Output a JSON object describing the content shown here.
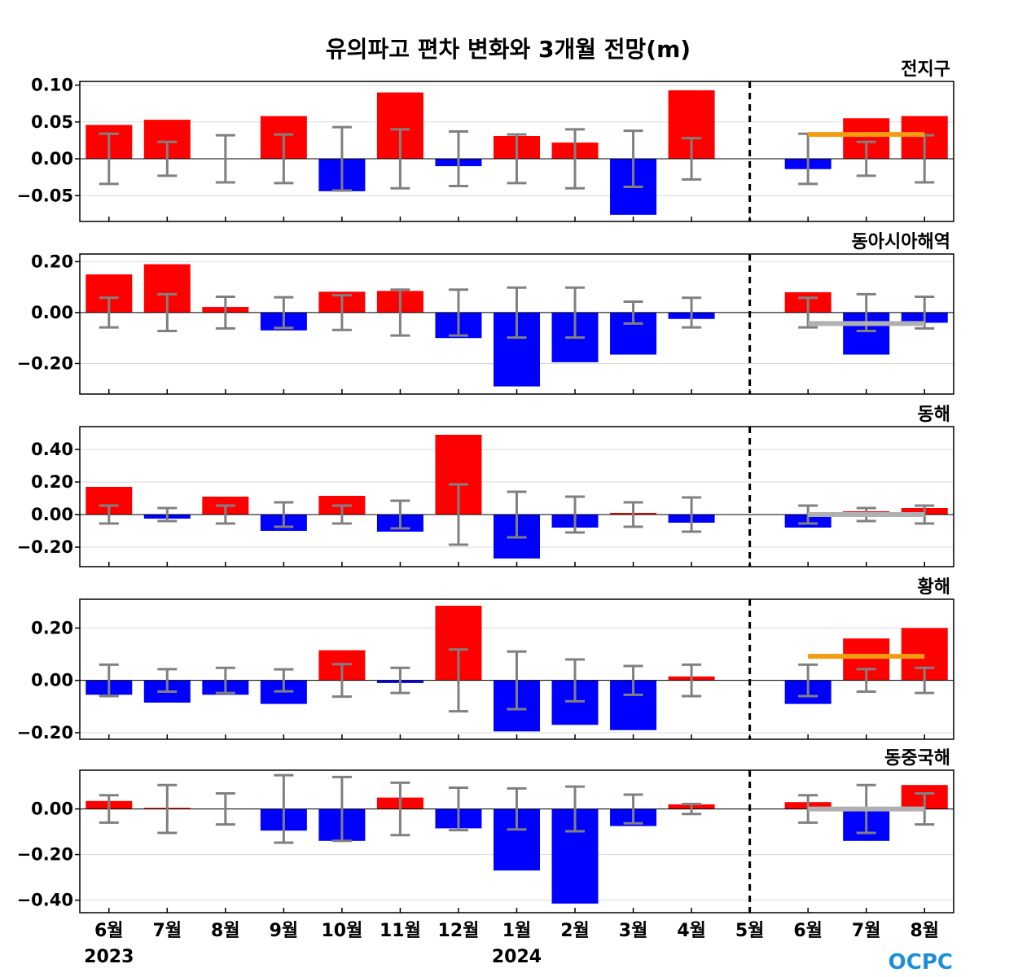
{
  "title": "유의파고 편차 변화와 3개월 전망(m)",
  "logo": "OCPC",
  "colors": {
    "positive": "#ff0000",
    "negative": "#0000ff",
    "errorbar": "#808080",
    "outlook_up": "#f39c12",
    "outlook_flat": "#b0b0b0",
    "divider": "#000000",
    "grid": "#d9d9d9"
  },
  "chart_data": {
    "type": "bar",
    "categories": [
      "6월",
      "7월",
      "8월",
      "9월",
      "10월",
      "11월",
      "12월",
      "1월",
      "2월",
      "3월",
      "4월",
      "5월",
      "6월",
      "7월",
      "8월"
    ],
    "year_labels": [
      {
        "index": 0,
        "text": "2023"
      },
      {
        "index": 7,
        "text": "2024"
      }
    ],
    "divider_after_index": 11,
    "panels": [
      {
        "name": "전지구",
        "ylim": [
          -0.085,
          0.105
        ],
        "yticks": [
          0.1,
          0.05,
          0.0,
          -0.05
        ],
        "ytick_labels": [
          "0.10",
          "0.05",
          "0.00",
          "−0.05"
        ],
        "values": [
          0.046,
          0.053,
          0.0,
          0.058,
          -0.044,
          0.09,
          -0.01,
          0.031,
          0.022,
          -0.076,
          0.093,
          0.0,
          -0.014,
          0.055,
          0.058
        ],
        "error_half": [
          0.034,
          0.023,
          0.032,
          0.033,
          0.043,
          0.04,
          0.037,
          0.033,
          0.04,
          0.038,
          0.028,
          null,
          0.034,
          0.023,
          0.032
        ],
        "outlook": {
          "value": 0.033,
          "color": "outlook_up"
        }
      },
      {
        "name": "동아시아해역",
        "ylim": [
          -0.32,
          0.23
        ],
        "yticks": [
          0.2,
          0.0,
          -0.2
        ],
        "ytick_labels": [
          "0.20",
          "0.00",
          "−0.20"
        ],
        "values": [
          0.15,
          0.19,
          0.022,
          -0.07,
          0.082,
          0.085,
          -0.1,
          -0.29,
          -0.195,
          -0.165,
          -0.025,
          0.0,
          0.08,
          -0.165,
          -0.04
        ],
        "error_half": [
          0.058,
          0.072,
          0.062,
          0.06,
          0.068,
          0.09,
          0.09,
          0.098,
          0.098,
          0.043,
          0.058,
          null,
          0.058,
          0.072,
          0.062
        ],
        "outlook": {
          "value": -0.043,
          "color": "outlook_flat"
        }
      },
      {
        "name": "동해",
        "ylim": [
          -0.32,
          0.54
        ],
        "yticks": [
          0.4,
          0.2,
          0.0,
          -0.2
        ],
        "ytick_labels": [
          "0.40",
          "0.20",
          "0.00",
          "−0.20"
        ],
        "values": [
          0.17,
          -0.025,
          0.11,
          -0.1,
          0.115,
          -0.105,
          0.49,
          -0.27,
          -0.08,
          0.01,
          -0.05,
          0.0,
          -0.08,
          0.02,
          0.04
        ],
        "error_half": [
          0.055,
          0.04,
          0.055,
          0.075,
          0.055,
          0.085,
          0.185,
          0.14,
          0.11,
          0.075,
          0.105,
          null,
          0.055,
          0.04,
          0.055
        ],
        "outlook": {
          "value": 0.0,
          "color": "outlook_flat"
        }
      },
      {
        "name": "황해",
        "ylim": [
          -0.225,
          0.31
        ],
        "yticks": [
          0.2,
          0.0,
          -0.2
        ],
        "ytick_labels": [
          "0.20",
          "0.00",
          "−0.20"
        ],
        "values": [
          -0.055,
          -0.085,
          -0.055,
          -0.09,
          0.115,
          -0.01,
          0.285,
          -0.195,
          -0.17,
          -0.19,
          0.015,
          0.0,
          -0.09,
          0.16,
          0.2
        ],
        "error_half": [
          0.06,
          0.043,
          0.048,
          0.042,
          0.062,
          0.048,
          0.118,
          0.11,
          0.08,
          0.055,
          0.06,
          null,
          0.06,
          0.043,
          0.048
        ],
        "outlook": {
          "value": 0.092,
          "color": "outlook_up"
        }
      },
      {
        "name": "동중국해",
        "ylim": [
          -0.455,
          0.17
        ],
        "yticks": [
          0.0,
          -0.2,
          -0.4
        ],
        "ytick_labels": [
          "0.00",
          "−0.20",
          "−0.40"
        ],
        "values": [
          0.035,
          0.005,
          0.0,
          -0.095,
          -0.14,
          0.05,
          -0.085,
          -0.27,
          -0.415,
          -0.075,
          0.02,
          0.0,
          0.03,
          -0.14,
          0.105
        ],
        "error_half": [
          0.06,
          0.105,
          0.068,
          0.148,
          0.14,
          0.115,
          0.093,
          0.09,
          0.098,
          0.063,
          0.022,
          null,
          0.06,
          0.105,
          0.068
        ],
        "outlook": {
          "value": 0.0,
          "color": "outlook_flat"
        }
      }
    ]
  }
}
